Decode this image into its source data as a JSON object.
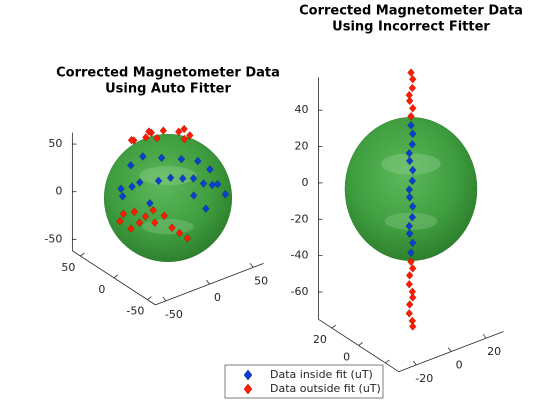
{
  "chart_data": [
    {
      "type": "scatter3d",
      "title": [
        "Corrected Magnetometer Data",
        "Using Auto Fitter"
      ],
      "xlim": [
        -62,
        62
      ],
      "ylim": [
        -62,
        62
      ],
      "zlim": [
        -62,
        62
      ],
      "xticks": [
        -50,
        0,
        50
      ],
      "yticks": [
        -50,
        0,
        50
      ],
      "zticks": [
        -50,
        0,
        50
      ],
      "series": [
        {
          "color": "#0a3fd0",
          "x": [
            -40,
            -30,
            -20,
            -10,
            0,
            10,
            20,
            -45,
            -50,
            -35,
            -25,
            -15,
            0,
            15,
            25,
            30,
            35,
            -5,
            -52,
            -40,
            5
          ],
          "y": [
            -10,
            -25,
            -30,
            -35,
            -38,
            -40,
            -40,
            -5,
            5,
            10,
            5,
            -10,
            -20,
            -25,
            -30,
            -35,
            -40,
            -45,
            0,
            -25,
            -50
          ],
          "z": [
            35,
            40,
            42,
            40,
            38,
            30,
            25,
            30,
            25,
            42,
            50,
            52,
            50,
            45,
            35,
            20,
            10,
            25,
            20,
            20,
            10
          ]
        },
        {
          "color": "#ff1a00",
          "x": [
            -10,
            0,
            10,
            20,
            25,
            -20,
            -5,
            15,
            30,
            5,
            -15,
            -50,
            -45,
            -40,
            -55,
            -48,
            -42,
            -35,
            -30,
            -55,
            -50,
            -25,
            -20
          ],
          "y": [
            20,
            25,
            20,
            10,
            0,
            25,
            10,
            -5,
            15,
            35,
            35,
            -15,
            -25,
            -30,
            -5,
            -20,
            -35,
            -40,
            -45,
            0,
            -10,
            -50,
            -55
          ],
          "z": [
            58,
            57,
            58,
            58,
            57,
            56,
            60,
            59,
            55,
            52,
            50,
            10,
            8,
            15,
            5,
            0,
            5,
            12,
            0,
            -5,
            -10,
            -5,
            -10
          ]
        }
      ]
    },
    {
      "type": "scatter3d",
      "title": [
        "Corrected Magnetometer Data",
        "Using Incorrect Fitter"
      ],
      "xlim": [
        -30,
        30
      ],
      "ylim": [
        -30,
        30
      ],
      "zlim": [
        -75,
        58
      ],
      "xticks": [
        -20,
        0,
        20
      ],
      "yticks": [
        -20,
        0,
        20
      ],
      "zticks": [
        -60,
        -40,
        -20,
        0,
        20,
        40
      ],
      "series": [
        {
          "name": "Data inside fit (uT)",
          "color": "#0a3fd0",
          "x": [
            0,
            1,
            0,
            -1,
            0,
            1,
            0,
            -1,
            0,
            1,
            0,
            -1,
            0,
            1,
            0
          ],
          "y": [
            0,
            0,
            1,
            0,
            -1,
            0,
            1,
            0,
            -1,
            0,
            1,
            0,
            -1,
            0,
            0
          ],
          "z": [
            -35,
            -30,
            -25,
            -20,
            -15,
            -10,
            -5,
            0,
            5,
            10,
            15,
            20,
            25,
            30,
            35
          ]
        },
        {
          "name": "Data outside fit (uT)",
          "color": "#ff1a00",
          "x": [
            0,
            1,
            0,
            -1,
            0,
            1,
            0,
            0,
            1,
            0,
            -1,
            0,
            1,
            0,
            -1,
            0,
            1
          ],
          "y": [
            0,
            0,
            1,
            0,
            -1,
            0,
            0,
            0,
            0,
            1,
            0,
            -1,
            0,
            1,
            0,
            -1,
            0
          ],
          "z": [
            40,
            44,
            48,
            52,
            56,
            60,
            64,
            -40,
            -44,
            -48,
            -52,
            -56,
            -60,
            -64,
            -68,
            -72,
            -76
          ]
        }
      ]
    }
  ]
}
